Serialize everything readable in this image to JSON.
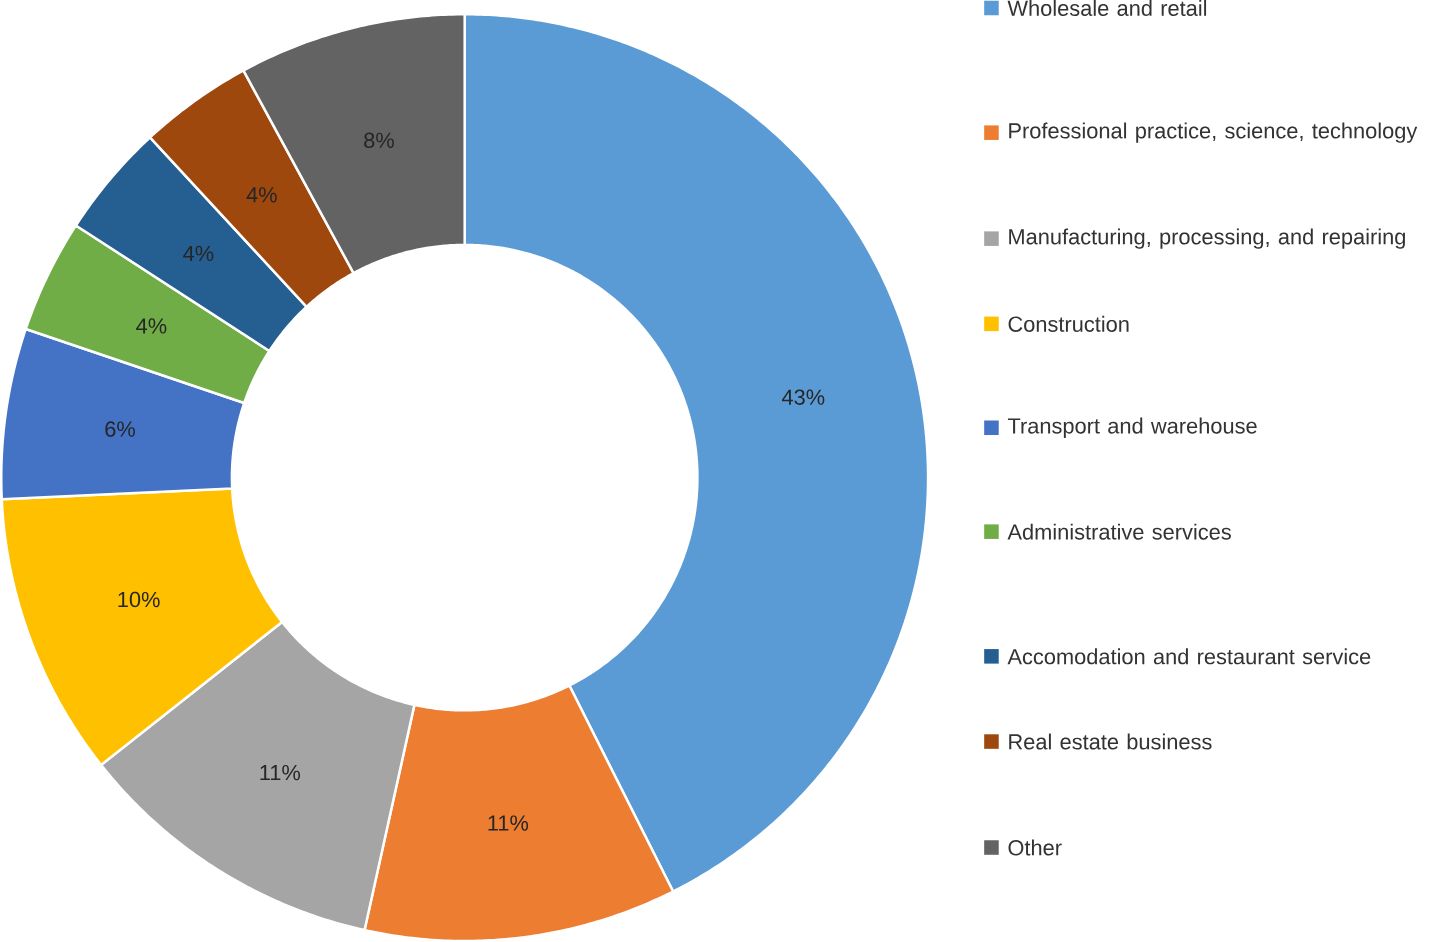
{
  "chart_data": {
    "type": "donut",
    "categories": [
      "Wholesale and retail",
      "Professional practice, science, technology",
      "Manufacturing, processing, and repairing",
      "Construction",
      "Transport and warehouse",
      "Administrative services",
      "Accomodation and restaurant service",
      "Real estate business",
      "Other"
    ],
    "values": [
      43,
      11,
      11,
      10,
      6,
      4,
      4,
      4,
      8
    ],
    "value_labels": [
      "43%",
      "11%",
      "11%",
      "10%",
      "6%",
      "4%",
      "4%",
      "4%",
      "8%"
    ],
    "colors": [
      "#5b9bd5",
      "#ed7d31",
      "#a5a5a5",
      "#ffc000",
      "#4472c4",
      "#70ad47",
      "#255e91",
      "#9e480e",
      "#636363"
    ],
    "legend": "right"
  }
}
